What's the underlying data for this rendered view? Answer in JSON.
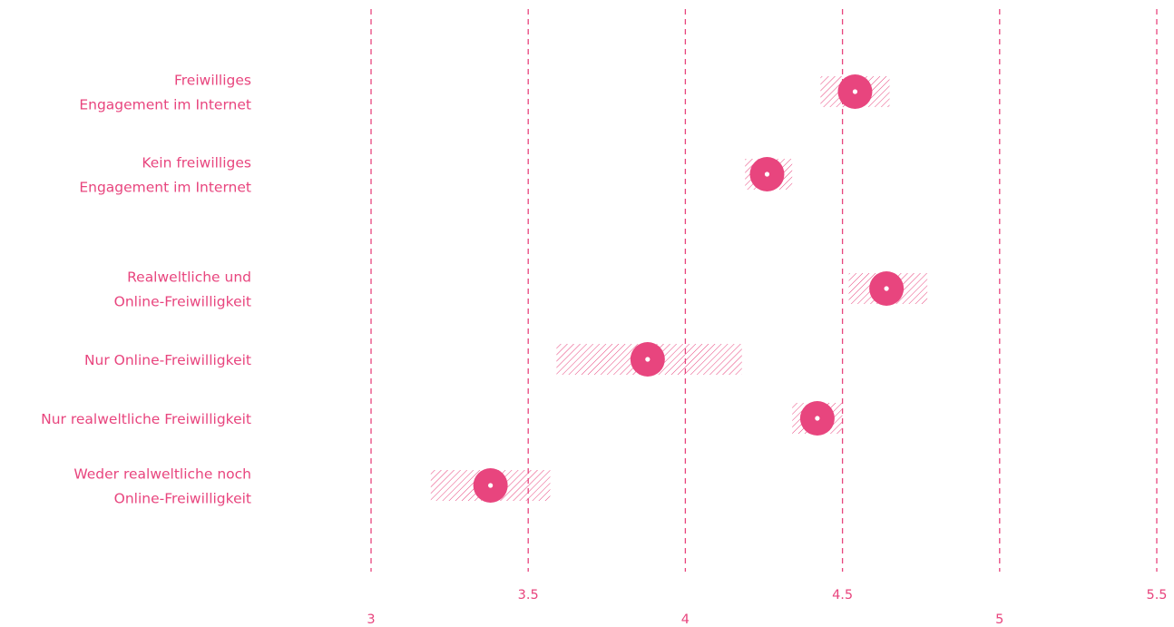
{
  "colors": {
    "accent": "#e8457e",
    "background": "#ffffff",
    "marker_center": "#ffffff"
  },
  "chart_data": {
    "type": "dot-with-interval",
    "orientation": "horizontal",
    "title": "",
    "xlabel": "",
    "ylabel": "",
    "xlim": [
      3,
      5.5
    ],
    "xticks": [
      {
        "value": 3,
        "label": "3",
        "row": "lower"
      },
      {
        "value": 3.5,
        "label": "3.5",
        "row": "upper"
      },
      {
        "value": 4,
        "label": "4",
        "row": "lower"
      },
      {
        "value": 4.5,
        "label": "4.5",
        "row": "upper"
      },
      {
        "value": 5,
        "label": "5",
        "row": "lower"
      },
      {
        "value": 5.5,
        "label": "5.5",
        "row": "upper"
      }
    ],
    "grid": "vertical dashed lines at each tick",
    "categories": [
      {
        "label_lines": [
          "Freiwilliges",
          "Engagement im Internet"
        ],
        "value": 4.54,
        "ci": [
          4.43,
          4.65
        ],
        "group": 1
      },
      {
        "label_lines": [
          "Kein freiwilliges",
          "Engagement im Internet"
        ],
        "value": 4.26,
        "ci": [
          4.19,
          4.34
        ],
        "group": 1
      },
      {
        "label_lines": [
          "Realweltliche und",
          "Online-Freiwilligkeit"
        ],
        "value": 4.64,
        "ci": [
          4.52,
          4.77
        ],
        "group": 2
      },
      {
        "label_lines": [
          "Nur Online-Freiwilligkeit"
        ],
        "value": 3.88,
        "ci": [
          3.59,
          4.18
        ],
        "group": 2
      },
      {
        "label_lines": [
          "Nur realweltliche Freiwilligkeit"
        ],
        "value": 4.42,
        "ci": [
          4.34,
          4.5
        ],
        "group": 2
      },
      {
        "label_lines": [
          "Weder realweltliche noch",
          "Online-Freiwilligkeit"
        ],
        "value": 3.38,
        "ci": [
          3.19,
          3.57
        ],
        "group": 2
      }
    ]
  }
}
